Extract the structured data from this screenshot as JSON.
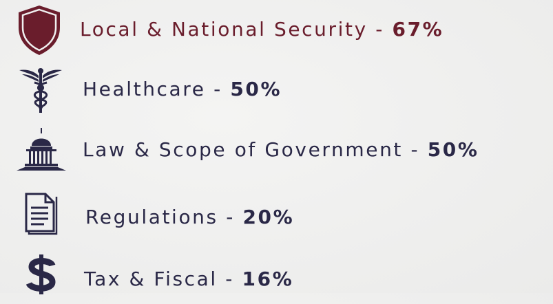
{
  "items": [
    {
      "label": "Local & National Security -",
      "value": "67%"
    },
    {
      "label": "Healthcare -",
      "value": "50%"
    },
    {
      "label": "Law & Scope of Government -",
      "value": "50%"
    },
    {
      "label": "Regulations -",
      "value": "20%"
    },
    {
      "label": "Tax & Fiscal -",
      "value": "16%"
    }
  ]
}
